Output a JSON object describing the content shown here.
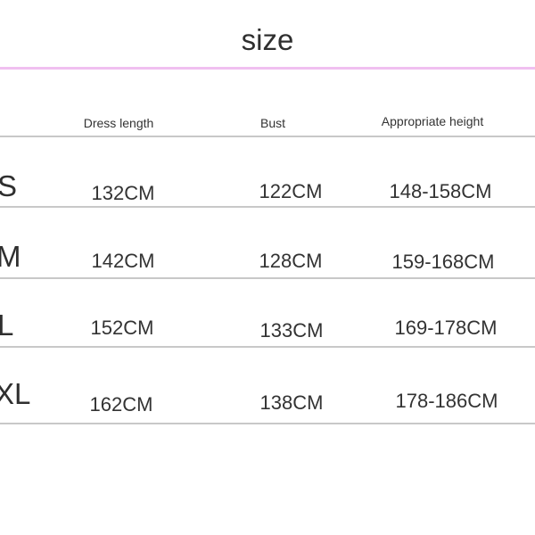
{
  "title": "size",
  "headers": [
    "Dress length",
    "Bust",
    "Appropriate height"
  ],
  "rows": [
    {
      "size": "S",
      "dress_length": "132CM",
      "bust": "122CM",
      "height": "148-158CM"
    },
    {
      "size": "M",
      "dress_length": "142CM",
      "bust": "128CM",
      "height": "159-168CM"
    },
    {
      "size": "L",
      "dress_length": "152CM",
      "bust": "133CM",
      "height": "169-178CM"
    },
    {
      "size": "XL",
      "dress_length": "162CM",
      "bust": "138CM",
      "height": "178-186CM"
    }
  ],
  "colors": {
    "accent_line": "#f0c0f0",
    "row_line": "#c8c8c8"
  }
}
